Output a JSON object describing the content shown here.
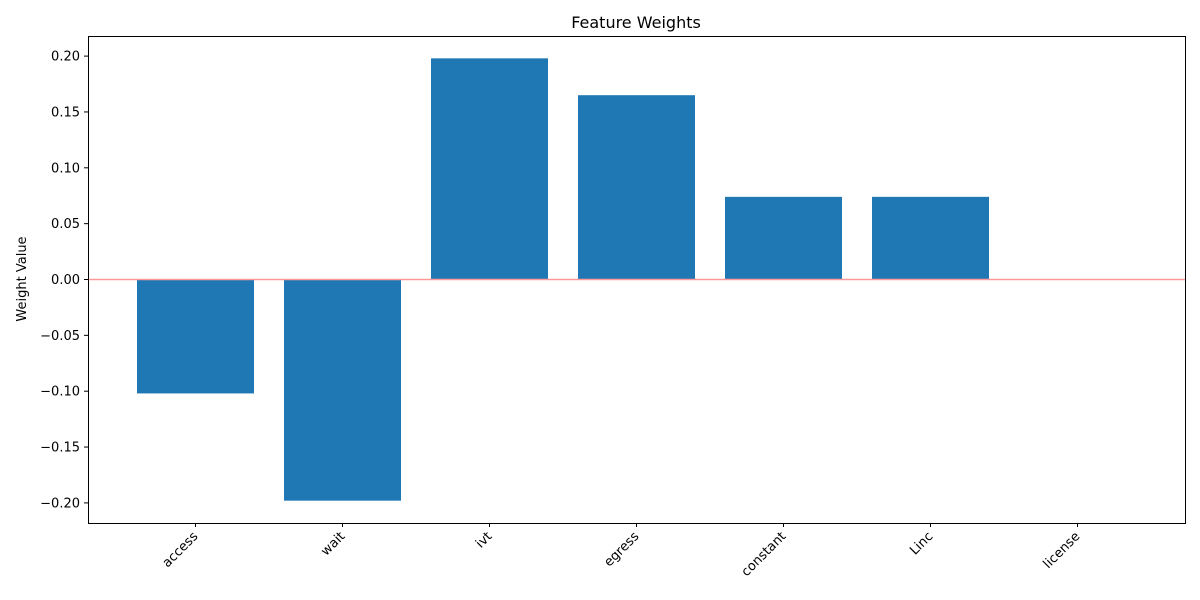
{
  "chart_data": {
    "type": "bar",
    "title": "Feature Weights",
    "xlabel": "",
    "ylabel": "Weight Value",
    "categories": [
      "access",
      "wait",
      "ivt",
      "egress",
      "constant",
      "Linc",
      "license"
    ],
    "values": [
      -0.102,
      -0.198,
      0.198,
      0.165,
      0.074,
      0.074,
      0.0
    ],
    "ylim": [
      -0.218,
      0.218
    ],
    "yticks": [
      -0.2,
      -0.15,
      -0.1,
      -0.05,
      0.0,
      0.05,
      0.1,
      0.15,
      0.2
    ],
    "ytick_labels": [
      "−0.20",
      "−0.15",
      "−0.10",
      "−0.05",
      "0.00",
      "0.05",
      "0.10",
      "0.15",
      "0.20"
    ],
    "bar_color": "#1f77b4",
    "zero_line_color": "#ff9999",
    "grid": false,
    "legend": "none"
  }
}
